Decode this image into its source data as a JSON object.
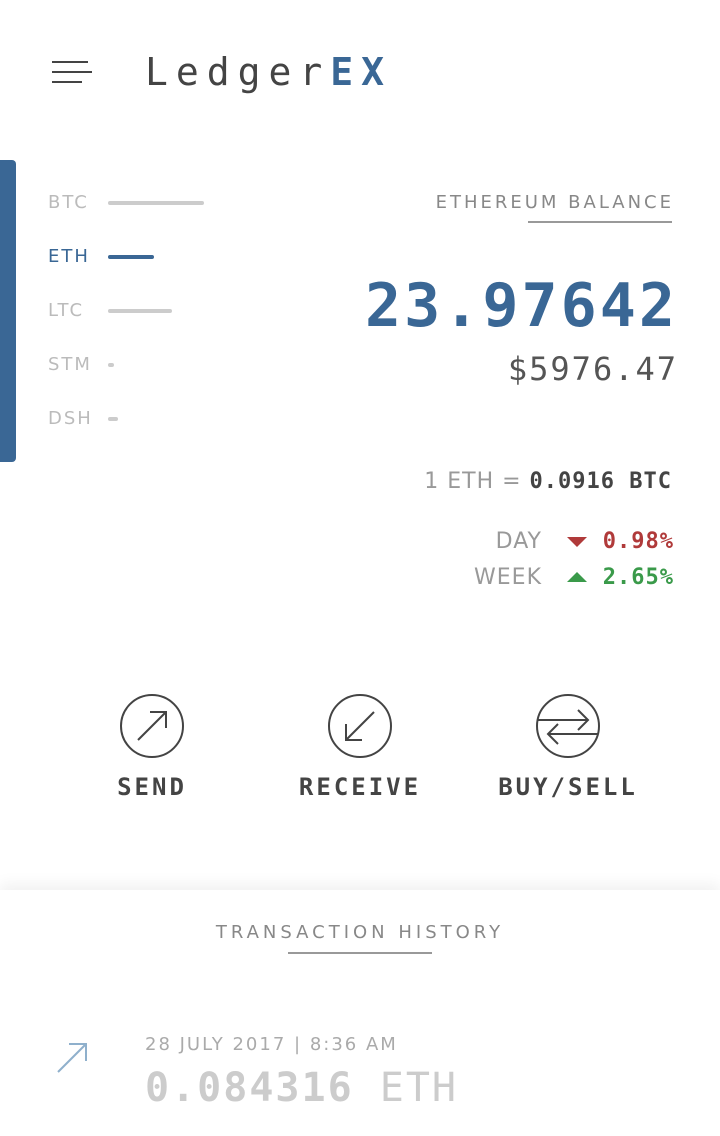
{
  "header": {
    "logo_main": "Ledger",
    "logo_accent": "EX"
  },
  "currencies": [
    "BTC",
    "ETH",
    "LTC",
    "STM",
    "DSH"
  ],
  "balance": {
    "label": "ETHEREUM BALANCE",
    "amount": "23.97642",
    "fiat": "$5976.47"
  },
  "rate": {
    "label": "1 ETH =",
    "value": "0.0916 BTC"
  },
  "changes": [
    {
      "period": "DAY",
      "value": "0.98%"
    },
    {
      "period": "WEEK",
      "value": "2.65%"
    }
  ],
  "actions": [
    "SEND",
    "RECEIVE",
    "BUY/SELL"
  ],
  "history": {
    "title": "TRANSACTION HISTORY",
    "transactions": [
      {
        "date": "28 JULY 2017",
        "separator": "|",
        "time": "8:36 AM",
        "amount": "0.084316",
        "unit": "ETH"
      }
    ]
  }
}
